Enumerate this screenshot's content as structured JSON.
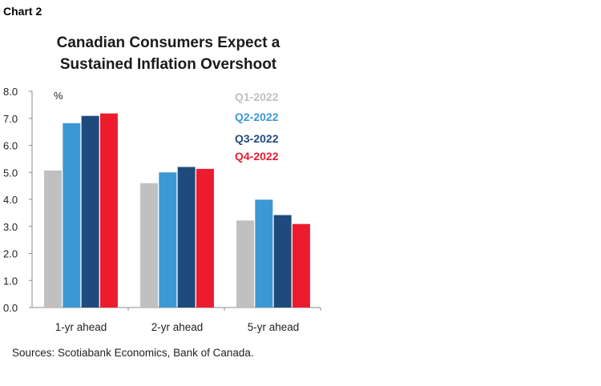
{
  "header": {
    "chart_label": "Chart 2"
  },
  "footer": {
    "source": "Sources: Scotiabank Economics, Bank of Canada."
  },
  "chart_data": {
    "type": "bar",
    "title_lines": [
      "Canadian Consumers Expect a",
      "Sustained Inflation Overshoot"
    ],
    "ylabel": "%",
    "ylim": [
      0,
      8
    ],
    "yticks": [
      "0.0",
      "1.0",
      "2.0",
      "3.0",
      "4.0",
      "5.0",
      "6.0",
      "7.0",
      "8.0"
    ],
    "categories": [
      "1-yr ahead",
      "2-yr ahead",
      "5-yr ahead"
    ],
    "series": [
      {
        "name": "Q1-2022",
        "color": "#c0c0c0",
        "values": [
          5.07,
          4.6,
          3.22
        ]
      },
      {
        "name": "Q2-2022",
        "color": "#3d97d3",
        "values": [
          6.82,
          5.0,
          3.99
        ]
      },
      {
        "name": "Q3-2022",
        "color": "#1f4a7d",
        "values": [
          7.09,
          5.2,
          3.42
        ]
      },
      {
        "name": "Q4-2022",
        "color": "#ec1c2e",
        "values": [
          7.18,
          5.13,
          3.09
        ]
      }
    ],
    "legend_position": "top-right",
    "grid": false
  }
}
